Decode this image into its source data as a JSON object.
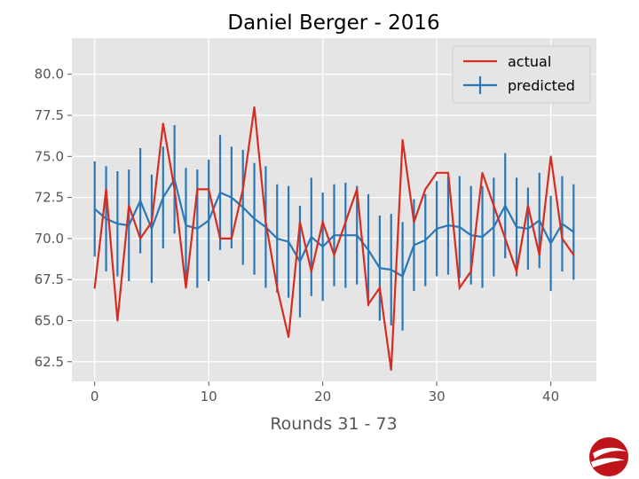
{
  "chart_data": {
    "type": "line",
    "title": "Daniel Berger - 2016",
    "xlabel": "Rounds 31 - 73",
    "ylabel": "",
    "xlim": [
      -2,
      44
    ],
    "ylim": [
      61.3,
      82.2
    ],
    "xticks": [
      0,
      10,
      20,
      30,
      40
    ],
    "yticks": [
      62.5,
      65.0,
      67.5,
      70.0,
      72.5,
      75.0,
      77.5,
      80.0
    ],
    "grid": true,
    "legend": "top-right",
    "x": [
      0,
      1,
      2,
      3,
      4,
      5,
      6,
      7,
      8,
      9,
      10,
      11,
      12,
      13,
      14,
      15,
      16,
      17,
      18,
      19,
      20,
      21,
      22,
      23,
      24,
      25,
      26,
      27,
      28,
      29,
      30,
      31,
      32,
      33,
      34,
      35,
      36,
      37,
      38,
      39,
      40,
      41,
      42
    ],
    "series": [
      {
        "name": "actual",
        "color": "#d62d20",
        "values": [
          67,
          73,
          65,
          72,
          70,
          71,
          77,
          73,
          67,
          73,
          73,
          70,
          70,
          73,
          78,
          71,
          67,
          64,
          71,
          68,
          71,
          69,
          71,
          73,
          66,
          67,
          62,
          76,
          71,
          73,
          74,
          74,
          67,
          68,
          74,
          72,
          70,
          68,
          72,
          69,
          75,
          70,
          69
        ]
      },
      {
        "name": "predicted",
        "color": "#2a78b8",
        "values": [
          71.8,
          71.2,
          70.9,
          70.8,
          72.3,
          70.6,
          72.5,
          73.6,
          70.8,
          70.6,
          71.1,
          72.8,
          72.5,
          71.9,
          71.2,
          70.7,
          70.0,
          69.8,
          68.6,
          70.1,
          69.5,
          70.2,
          70.2,
          70.2,
          69.3,
          68.2,
          68.1,
          67.7,
          69.6,
          69.9,
          70.6,
          70.8,
          70.7,
          70.2,
          70.1,
          70.7,
          72.0,
          70.7,
          70.6,
          71.1,
          69.7,
          70.9,
          70.4
        ],
        "error": [
          2.9,
          3.2,
          3.2,
          3.4,
          3.2,
          3.3,
          3.1,
          3.3,
          3.5,
          3.6,
          3.7,
          3.5,
          3.1,
          3.5,
          3.4,
          3.7,
          3.3,
          3.4,
          3.4,
          3.6,
          3.3,
          3.1,
          3.2,
          3.0,
          3.4,
          3.2,
          3.4,
          3.3,
          2.8,
          2.8,
          2.9,
          3.0,
          3.1,
          3.0,
          3.1,
          3.0,
          3.2,
          3.0,
          2.5,
          2.9,
          2.9,
          2.9,
          2.9
        ]
      }
    ]
  },
  "logo": {
    "name": "logo-icon",
    "color": "#c0141b"
  }
}
